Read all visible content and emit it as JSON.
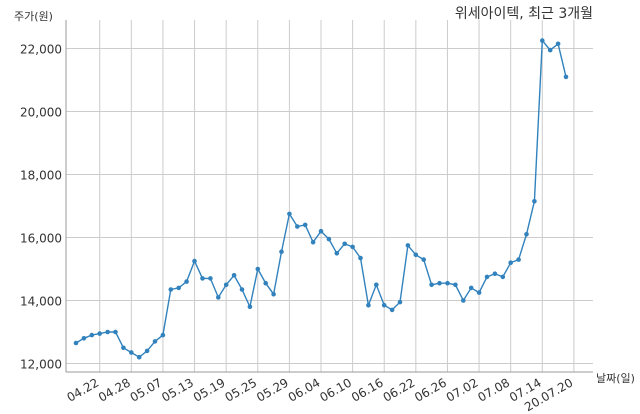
{
  "chart_data": {
    "type": "line",
    "title": "위세아이텍, 최근 3개월",
    "xlabel": "날짜(일)",
    "ylabel": "주가(원)",
    "ylim": [
      12000,
      22700
    ],
    "yticks": [
      "12,000",
      "14,000",
      "16,000",
      "18,000",
      "20,000",
      "22,000"
    ],
    "yticks_values": [
      12000,
      14000,
      16000,
      18000,
      20000,
      22000
    ],
    "xtick_labels": [
      "04.22",
      "04.28",
      "05.07",
      "05.13",
      "05.19",
      "05.25",
      "05.29",
      "06.04",
      "06.10",
      "06.16",
      "06.22",
      "06.26",
      "07.02",
      "07.08",
      "07.14",
      "20.07.20"
    ],
    "xtick_index": [
      3,
      7,
      11,
      15,
      19,
      23,
      27,
      31,
      35,
      39,
      43,
      47,
      51,
      55,
      59,
      63
    ],
    "grid": true,
    "color": "#3182bd",
    "series": [
      {
        "values": [
          12650,
          12800,
          12900,
          12950,
          13000,
          13000,
          12500,
          12350,
          12200,
          12400,
          12700,
          12900,
          14350,
          14400,
          14600,
          15250,
          14700,
          14700,
          14100,
          14500,
          14800,
          14350,
          13800,
          15000,
          14550,
          14200,
          15550,
          16750,
          16350,
          16400,
          15850,
          16200,
          15950,
          15500,
          15800,
          15700,
          15350,
          13850,
          14500,
          13850,
          13700,
          13950,
          15750,
          15450,
          15300,
          14500,
          14550,
          14550,
          14500,
          14000,
          14400,
          14250,
          14750,
          14850,
          14750,
          15200,
          15300,
          16100,
          17150,
          22250,
          21950,
          22150,
          21100
        ]
      }
    ]
  }
}
